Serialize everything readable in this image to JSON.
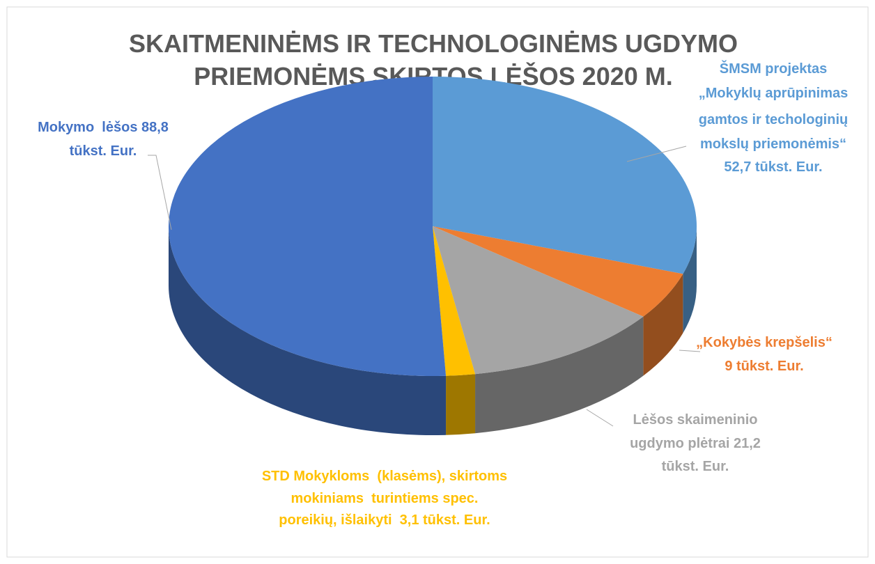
{
  "chart_data": {
    "type": "pie3d",
    "title": "SKAITMENINĖMS IR TECHNOLOGINĖMS UGDYMO\nPRIEMONĖMS SKIRTOS LĖŠOS 2020 M.",
    "values": [
      52.7,
      9,
      21.2,
      3.1,
      88.8
    ],
    "value_labels": [
      "ŠMSM projektas\n„Mokyklų aprūpinimas\ngamtos ir techologinių\nmokslų priemonėmis“\n52,7 tūkst. Eur.",
      "„Kokybės krepšelis“\n9 tūkst. Eur.",
      "Lėšos skaimeninio\nugdymo plėtrai 21,2\ntūkst. Eur.",
      "STD Mokykloms  (klasėms), skirtoms\nmokiniams  turintiems spec.\nporeikių, išlaikyti  3,1 tūkst. Eur.",
      "Mokymo  lėšos 88,8\ntūkst. Eur."
    ],
    "colors": [
      "#5b9bd5",
      "#ed7d31",
      "#a5a5a5",
      "#ffc000",
      "#4472c4"
    ]
  }
}
